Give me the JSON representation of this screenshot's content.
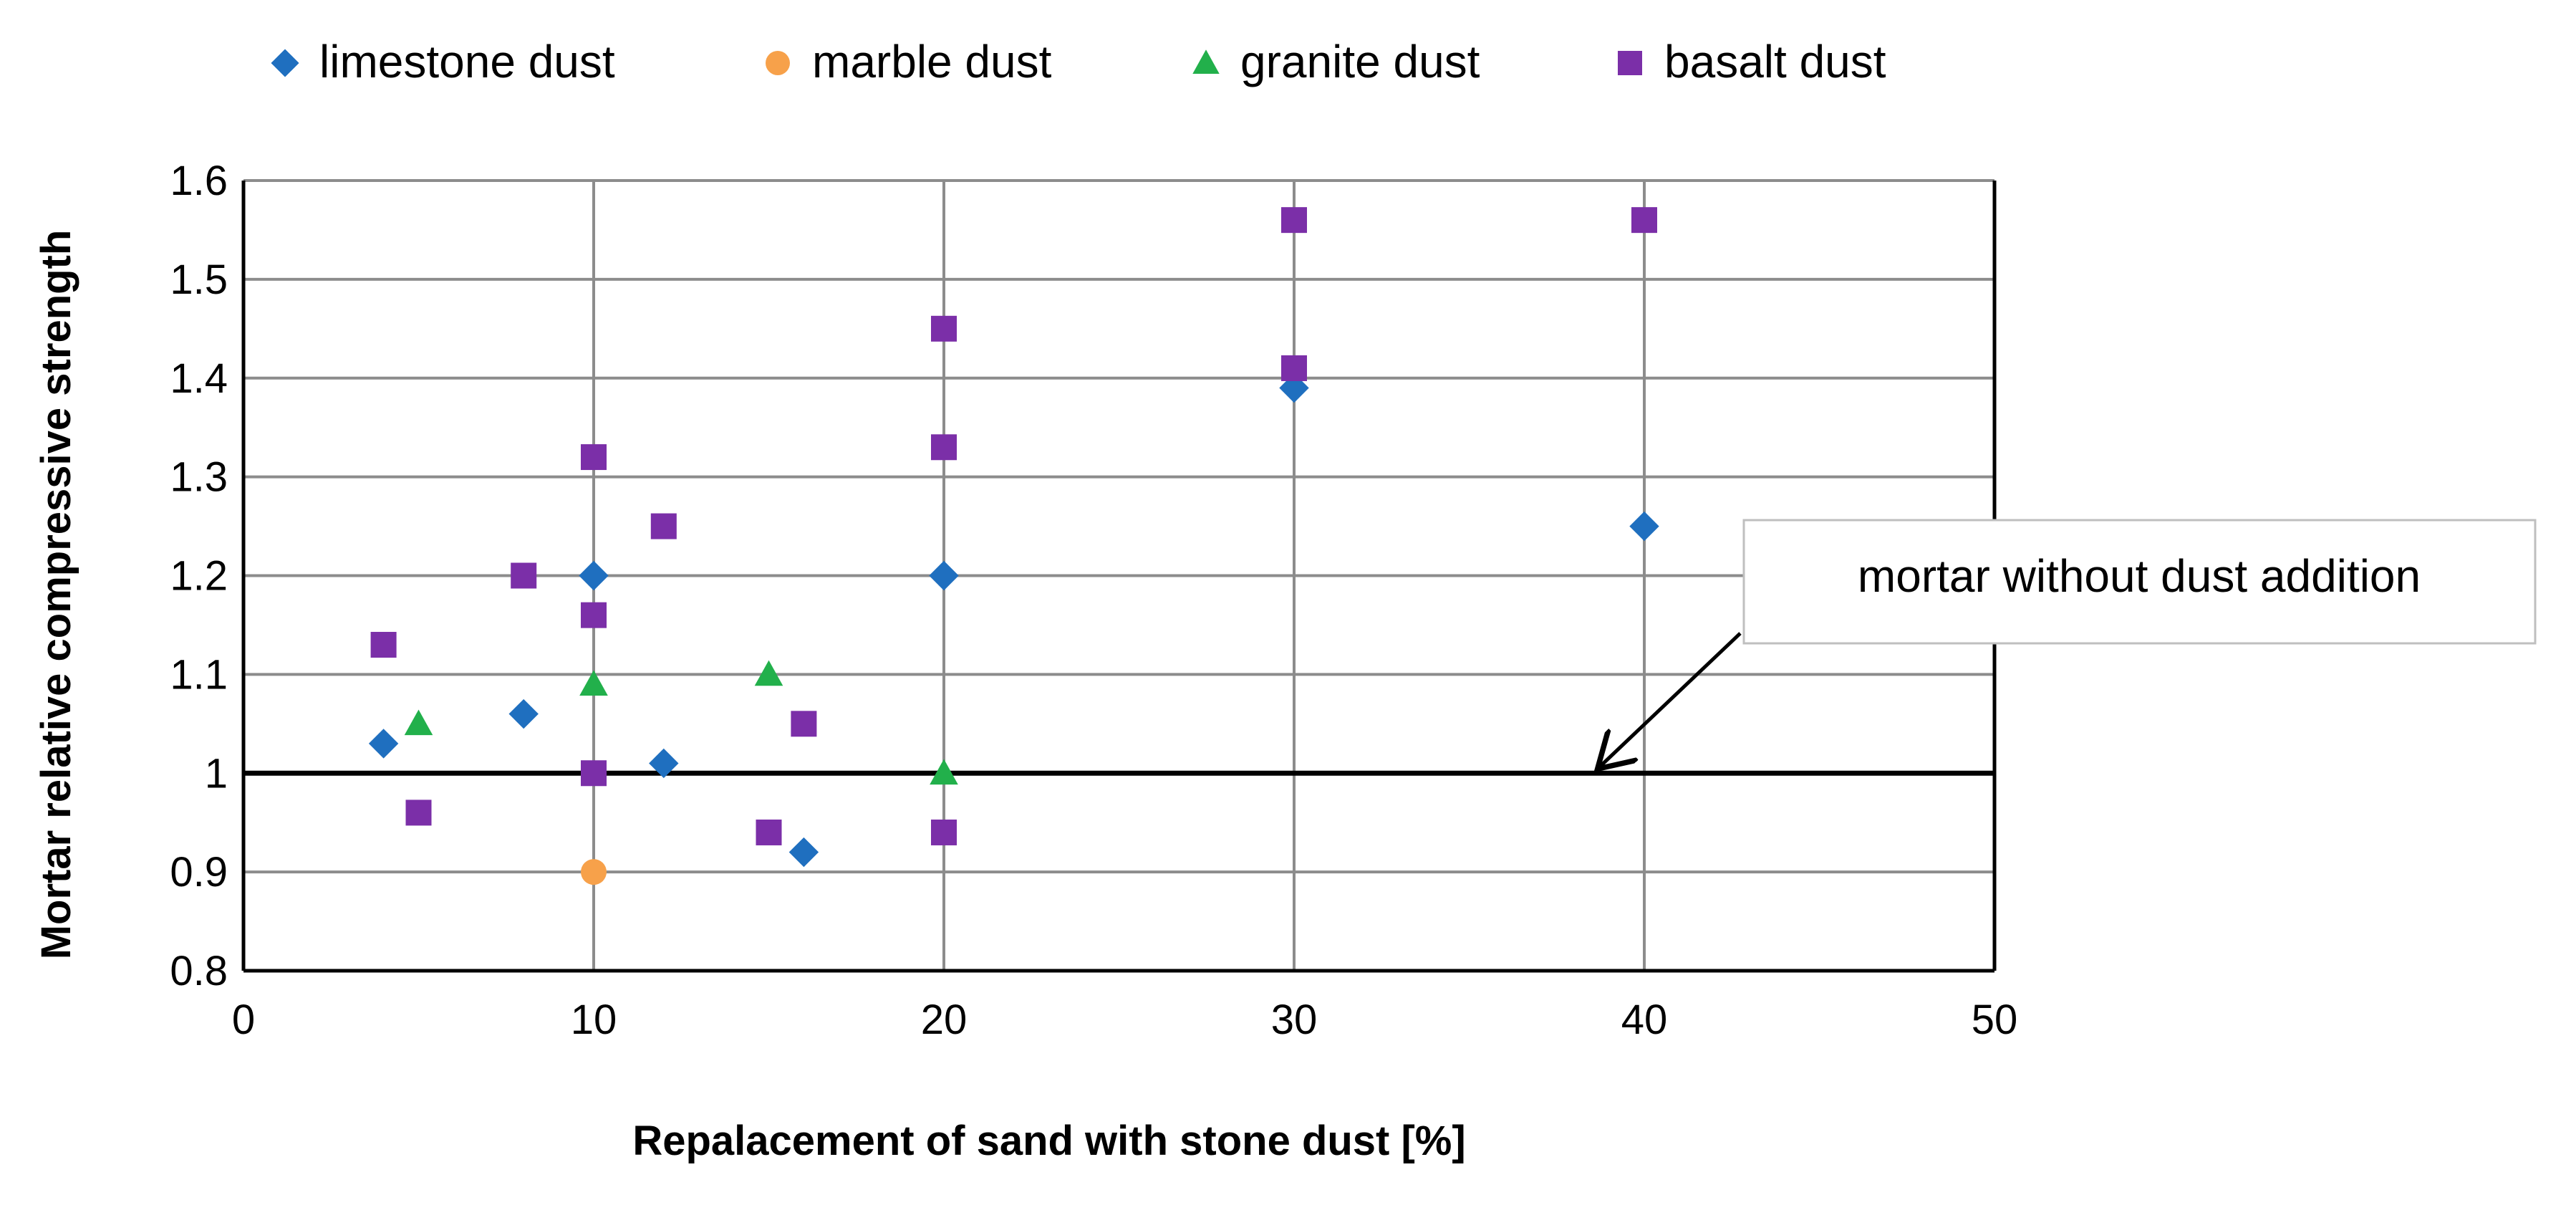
{
  "chart_data": {
    "type": "scatter",
    "title": "",
    "xlabel": "Repalacement of sand with stone dust [%]",
    "ylabel": "Mortar relative compressive strength",
    "xlim": [
      0,
      50
    ],
    "ylim": [
      0.8,
      1.6
    ],
    "xticks": [
      0,
      10,
      20,
      30,
      40,
      50
    ],
    "yticks": [
      0.8,
      0.9,
      1,
      1.1,
      1.2,
      1.3,
      1.4,
      1.5,
      1.6
    ],
    "xtick_labels": [
      "0",
      "10",
      "20",
      "30",
      "40",
      "50"
    ],
    "ytick_labels": [
      "0.8",
      "0.9",
      "1",
      "1.1",
      "1.2",
      "1.3",
      "1.4",
      "1.5",
      "1.6"
    ],
    "grid": "vertical and horizontal major gridlines",
    "legend_position": "top",
    "reference_line": {
      "y": 1.0
    },
    "annotation": {
      "text": "mortar without dust addition",
      "arrow_target": {
        "x": 38.5,
        "y": 1.0
      }
    },
    "series": [
      {
        "name": "limestone dust",
        "marker": "diamond",
        "color": "#1f6fbf",
        "points": [
          {
            "x": 4,
            "y": 1.03
          },
          {
            "x": 8,
            "y": 1.06
          },
          {
            "x": 10,
            "y": 1.2
          },
          {
            "x": 12,
            "y": 1.01
          },
          {
            "x": 16,
            "y": 0.92
          },
          {
            "x": 20,
            "y": 1.2
          },
          {
            "x": 30,
            "y": 1.39
          },
          {
            "x": 40,
            "y": 1.25
          }
        ]
      },
      {
        "name": "marble dust",
        "marker": "circle",
        "color": "#f7a14a",
        "points": [
          {
            "x": 10,
            "y": 0.9
          }
        ]
      },
      {
        "name": "granite dust",
        "marker": "triangle",
        "color": "#22b04b",
        "points": [
          {
            "x": 5,
            "y": 1.05
          },
          {
            "x": 10,
            "y": 1.09
          },
          {
            "x": 15,
            "y": 1.1
          },
          {
            "x": 20,
            "y": 1.0
          }
        ]
      },
      {
        "name": "basalt dust",
        "marker": "square",
        "color": "#7b2fa8",
        "points": [
          {
            "x": 4,
            "y": 1.13
          },
          {
            "x": 5,
            "y": 0.96
          },
          {
            "x": 8,
            "y": 1.2
          },
          {
            "x": 10,
            "y": 1.32
          },
          {
            "x": 10,
            "y": 1.16
          },
          {
            "x": 10,
            "y": 1.0
          },
          {
            "x": 12,
            "y": 1.25
          },
          {
            "x": 15,
            "y": 0.94
          },
          {
            "x": 16,
            "y": 1.05
          },
          {
            "x": 20,
            "y": 1.45
          },
          {
            "x": 20,
            "y": 1.33
          },
          {
            "x": 20,
            "y": 0.94
          },
          {
            "x": 30,
            "y": 1.56
          },
          {
            "x": 30,
            "y": 1.41
          },
          {
            "x": 40,
            "y": 1.56
          }
        ]
      }
    ]
  }
}
